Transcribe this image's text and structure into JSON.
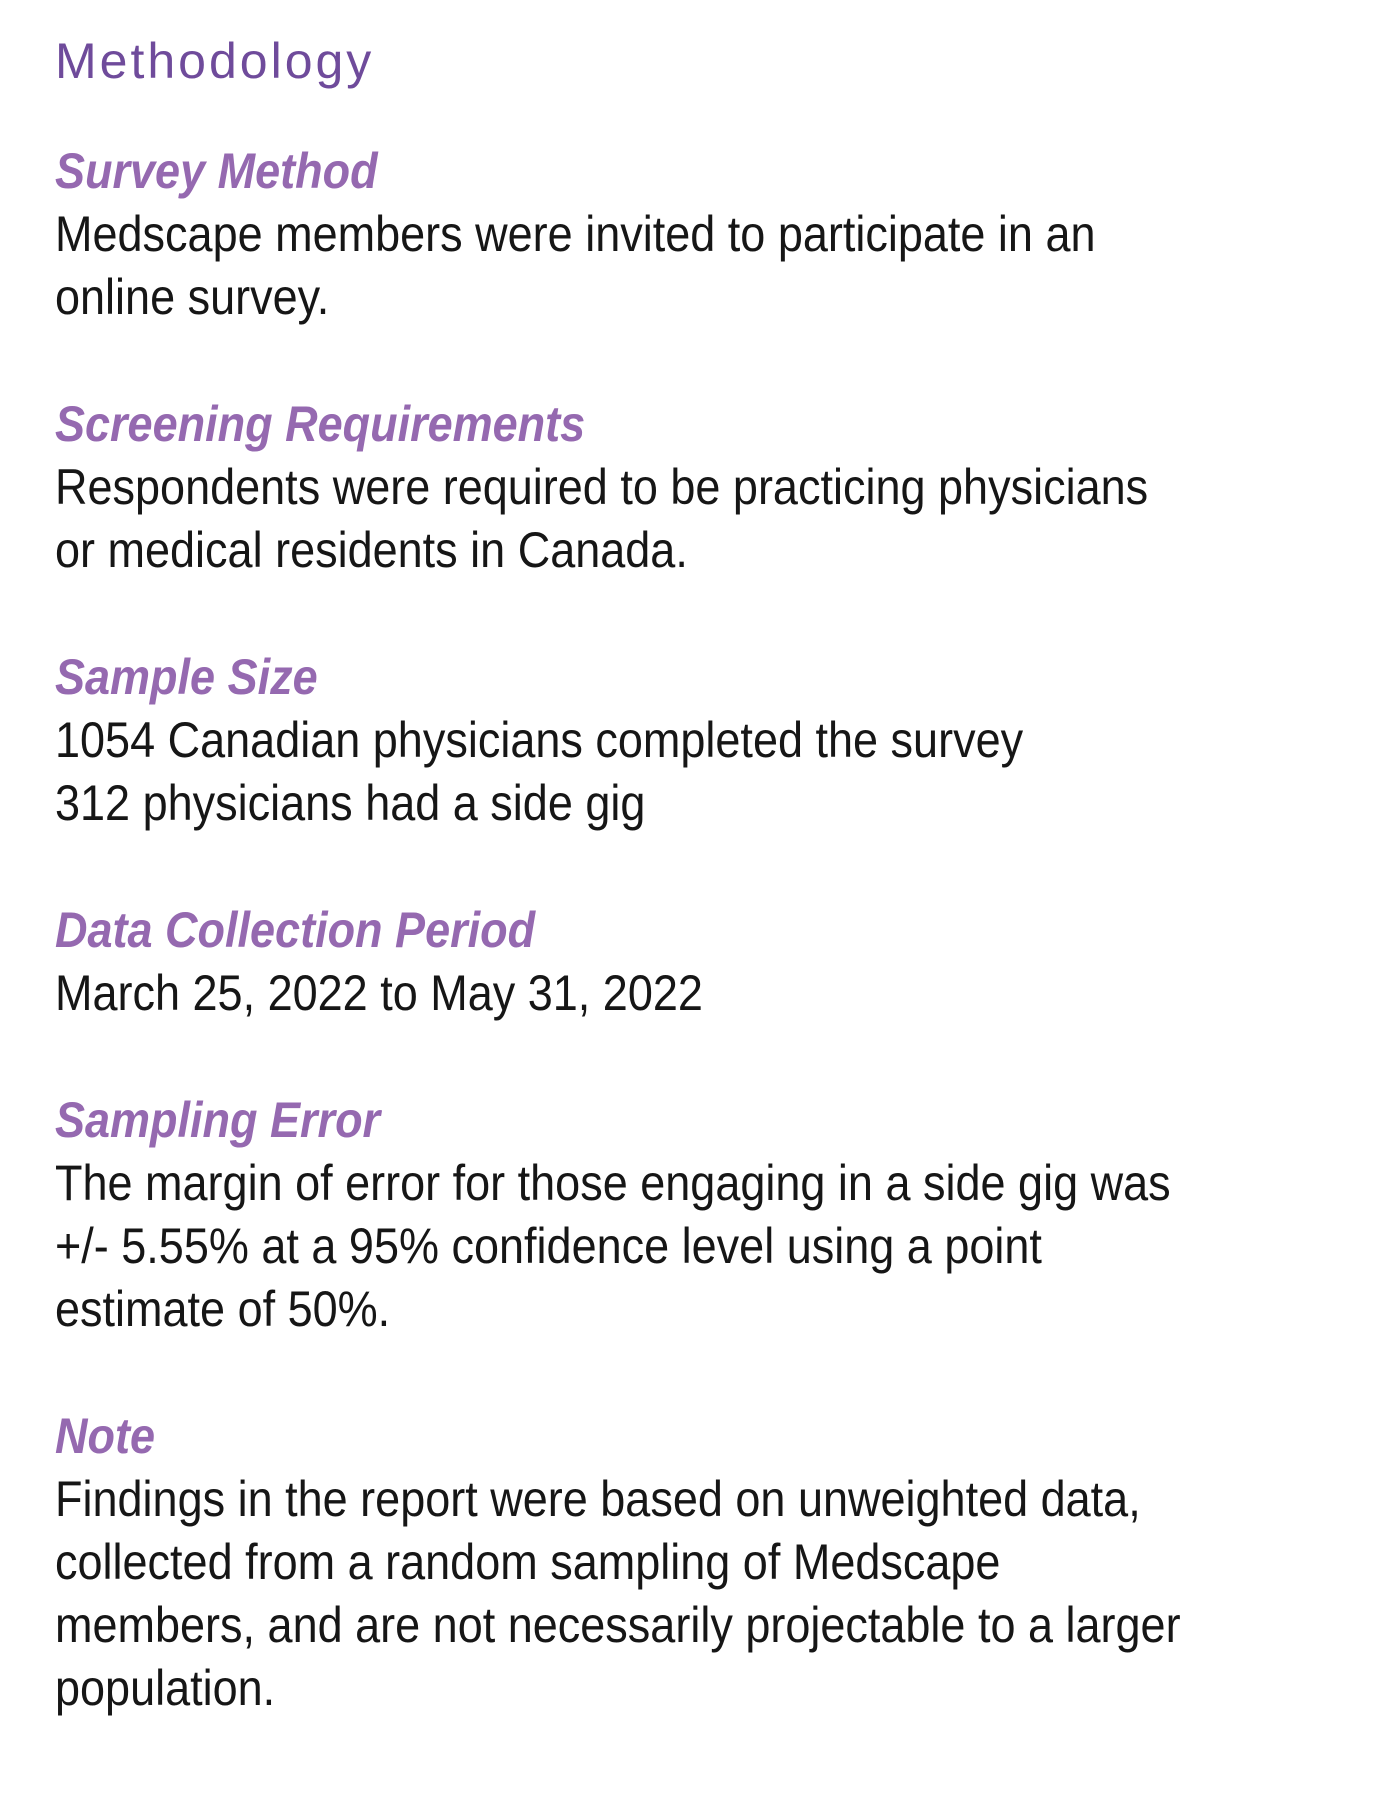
{
  "page": {
    "title": "Methodology",
    "colors": {
      "title": "#6f4b9b",
      "heading": "#9569b0",
      "body": "#161616",
      "background": "#ffffff"
    },
    "sections": [
      {
        "heading": "Survey Method",
        "lines": [
          "Medscape members were invited to participate in an",
          "online survey."
        ]
      },
      {
        "heading": "Screening Requirements",
        "lines": [
          "Respondents were required to be practicing physicians",
          "or medical residents in Canada."
        ]
      },
      {
        "heading": "Sample Size",
        "lines": [
          "1054 Canadian physicians completed the survey",
          "312 physicians had a side gig"
        ]
      },
      {
        "heading": "Data Collection Period",
        "lines": [
          "March 25, 2022 to May 31, 2022"
        ]
      },
      {
        "heading": "Sampling Error",
        "lines": [
          "The margin of error for those engaging in a side gig was",
          "+/- 5.55% at a 95% confidence level using a point",
          "estimate of 50%."
        ]
      },
      {
        "heading": "Note",
        "lines": [
          "Findings in the report were based on unweighted data,",
          "collected from a random sampling of Medscape",
          "members, and are not necessarily projectable to a larger",
          "population."
        ]
      }
    ]
  }
}
